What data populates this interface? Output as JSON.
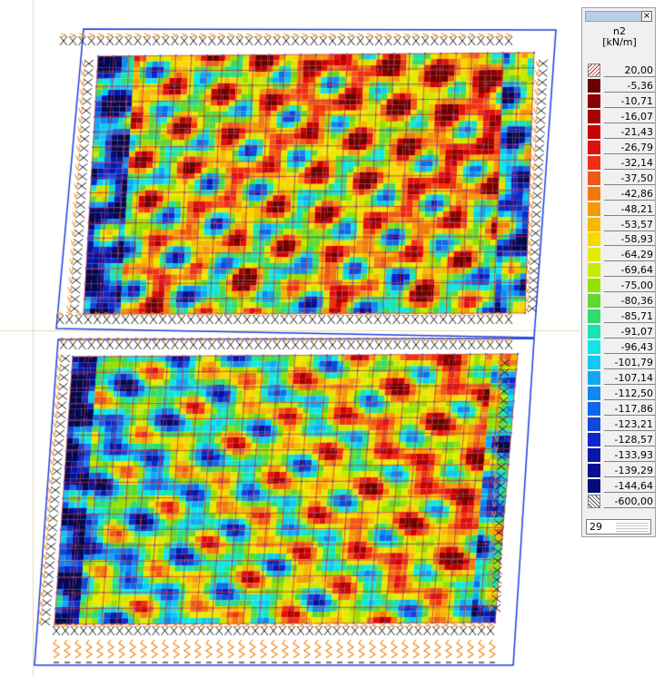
{
  "legend": {
    "result_name": "n2",
    "unit": "[kN/m]",
    "values": [
      "20,00",
      "-5,36",
      "-10,71",
      "-16,07",
      "-21,43",
      "-26,79",
      "-32,14",
      "-37,50",
      "-42,86",
      "-48,21",
      "-53,57",
      "-58,93",
      "-64,29",
      "-69,64",
      "-75,00",
      "-80,36",
      "-85,71",
      "-91,07",
      "-96,43",
      "-101,79",
      "-107,14",
      "-112,50",
      "-117,86",
      "-123,21",
      "-128,57",
      "-133,93",
      "-139,29",
      "-144,64",
      "-600,00"
    ],
    "colors": [
      "#6a0000",
      "#8a0000",
      "#a80000",
      "#c80000",
      "#e01010",
      "#f03010",
      "#f05818",
      "#f07a10",
      "#f29a08",
      "#f6b800",
      "#f6d800",
      "#e6ea00",
      "#c6ea00",
      "#96e000",
      "#60d830",
      "#30dc70",
      "#18e4b0",
      "#10e6e6",
      "#10c8f2",
      "#10a8f2",
      "#1088f0",
      "#1068e8",
      "#1048d8",
      "#0c28c8",
      "#0818a8",
      "#081090",
      "#060c78",
      "#04084e"
    ],
    "count_value": "29",
    "close_symbol": "×"
  }
}
